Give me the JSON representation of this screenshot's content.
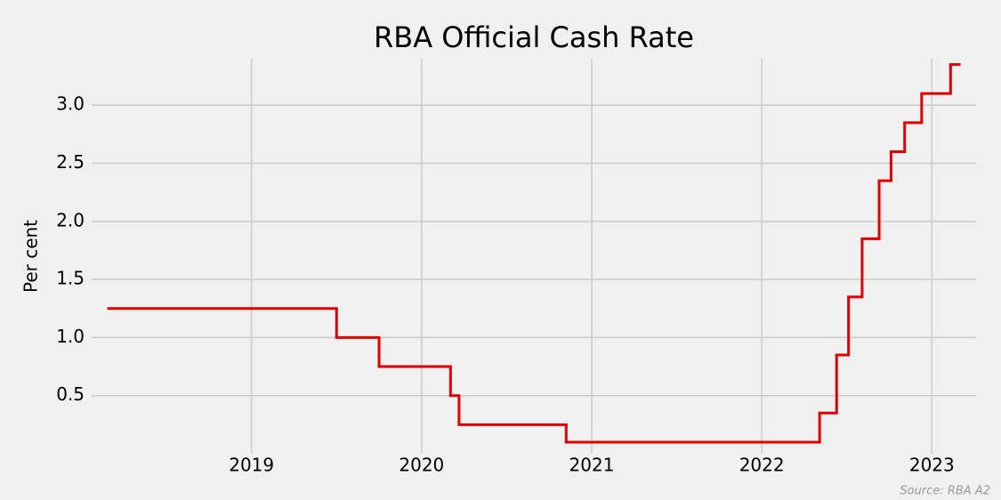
{
  "chart_data": {
    "type": "step",
    "title": "RBA Official Cash Rate",
    "y_label": "Per cent",
    "source": "Source: RBA A2",
    "x": [
      2018.16,
      2019.5,
      2019.75,
      2020.17,
      2020.22,
      2020.85,
      2022.34,
      2022.44,
      2022.51,
      2022.59,
      2022.69,
      2022.76,
      2022.84,
      2022.94,
      2023.11,
      2023.16
    ],
    "series": [
      {
        "name": "Cash rate",
        "color": "#e00000",
        "values": [
          1.25,
          1.0,
          0.75,
          0.5,
          0.25,
          0.1,
          0.35,
          0.85,
          1.35,
          1.85,
          2.35,
          2.6,
          2.85,
          3.1,
          3.35,
          3.35
        ]
      }
    ],
    "xlim": [
      2018.06,
      2023.26
    ],
    "xticks": [
      2019,
      2020,
      2021,
      2022,
      2023
    ],
    "ylim": [
      0.0,
      3.4
    ],
    "yticks": [
      0.5,
      {
        "value": 1,
        "label": "1.0"
      },
      1.5,
      {
        "value": 2,
        "label": "2.0"
      },
      2.5,
      {
        "value": 3,
        "label": "3.0"
      }
    ],
    "grid": true
  }
}
